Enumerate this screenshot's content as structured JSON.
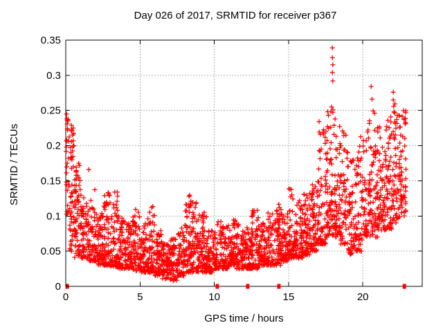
{
  "chart_data": {
    "type": "scatter",
    "title": "Day 026 of 2017, SRMTID for receiver p367",
    "xlabel": "GPS time / hours",
    "ylabel": "SRMTID / TECUs",
    "xlim": [
      0,
      24
    ],
    "ylim": [
      0,
      0.35
    ],
    "xticks": [
      {
        "v": 0,
        "label": "0"
      },
      {
        "v": 5,
        "label": "5"
      },
      {
        "v": 10,
        "label": "10"
      },
      {
        "v": 15,
        "label": "15"
      },
      {
        "v": 20,
        "label": "20"
      }
    ],
    "yticks": [
      {
        "v": 0,
        "label": "0"
      },
      {
        "v": 0.05,
        "label": "0.05"
      },
      {
        "v": 0.1,
        "label": "0.1"
      },
      {
        "v": 0.15,
        "label": "0.15"
      },
      {
        "v": 0.2,
        "label": "0.2"
      },
      {
        "v": 0.25,
        "label": "0.25"
      },
      {
        "v": 0.3,
        "label": "0.3"
      },
      {
        "v": 0.35,
        "label": "0.35"
      }
    ],
    "grid": true,
    "legend": "none",
    "colors": {
      "marker": "#ff0000",
      "grid": "#b0b0b0",
      "axis": "#000000",
      "text": "#000000",
      "background": "#ffffff"
    },
    "marker": {
      "shape": "plus",
      "size": 7,
      "stroke_width": 1.3
    },
    "seed": 20170126,
    "zero_value_markers_x": [
      0.1,
      10.2,
      12.25,
      14.35,
      22.8
    ],
    "outlier_points": [
      [
        0.05,
        0.245
      ],
      [
        0.07,
        0.238
      ],
      [
        0.1,
        0.231
      ],
      [
        0.12,
        0.224
      ],
      [
        0.38,
        0.229
      ],
      [
        0.42,
        0.222
      ],
      [
        0.45,
        0.215
      ],
      [
        0.5,
        0.207
      ],
      [
        0.55,
        0.2
      ],
      [
        0.35,
        0.19
      ],
      [
        0.32,
        0.182
      ],
      [
        1.55,
        0.166
      ],
      [
        2.85,
        0.133
      ],
      [
        3.3,
        0.134
      ],
      [
        5.78,
        0.112
      ],
      [
        8.3,
        0.128
      ],
      [
        8.42,
        0.121
      ],
      [
        9.32,
        0.105
      ],
      [
        12.9,
        0.108
      ],
      [
        15.1,
        0.138
      ],
      [
        15.22,
        0.13
      ],
      [
        17.95,
        0.339
      ],
      [
        17.95,
        0.325
      ],
      [
        17.98,
        0.315
      ],
      [
        17.95,
        0.304
      ],
      [
        17.98,
        0.292
      ],
      [
        17.9,
        0.255
      ],
      [
        20.56,
        0.284
      ],
      [
        20.62,
        0.266
      ],
      [
        22.05,
        0.276
      ],
      [
        22.05,
        0.265
      ],
      [
        22.08,
        0.256
      ],
      [
        22.1,
        0.248
      ]
    ],
    "band_profile_bins": [
      [
        0.02,
        0.25,
        0.1,
        0.246,
        0.17,
        26
      ],
      [
        0.25,
        0.55,
        0.05,
        0.23,
        0.115,
        40
      ],
      [
        0.55,
        1.0,
        0.04,
        0.175,
        0.09,
        65
      ],
      [
        1.0,
        1.5,
        0.04,
        0.13,
        0.07,
        62
      ],
      [
        1.5,
        2.0,
        0.035,
        0.14,
        0.065,
        62
      ],
      [
        2.0,
        2.5,
        0.03,
        0.105,
        0.055,
        60
      ],
      [
        2.5,
        3.0,
        0.03,
        0.135,
        0.055,
        64
      ],
      [
        3.0,
        3.5,
        0.028,
        0.135,
        0.052,
        64
      ],
      [
        3.5,
        4.0,
        0.025,
        0.1,
        0.05,
        60
      ],
      [
        4.0,
        4.5,
        0.025,
        0.09,
        0.046,
        60
      ],
      [
        4.5,
        5.0,
        0.022,
        0.11,
        0.045,
        60
      ],
      [
        5.0,
        5.5,
        0.02,
        0.1,
        0.042,
        60
      ],
      [
        5.5,
        6.0,
        0.02,
        0.115,
        0.045,
        62
      ],
      [
        6.0,
        6.5,
        0.015,
        0.08,
        0.038,
        60
      ],
      [
        6.5,
        7.0,
        0.01,
        0.062,
        0.034,
        58
      ],
      [
        7.0,
        7.5,
        0.008,
        0.068,
        0.03,
        58
      ],
      [
        7.5,
        8.0,
        0.015,
        0.085,
        0.04,
        60
      ],
      [
        8.0,
        8.5,
        0.02,
        0.13,
        0.05,
        64
      ],
      [
        8.5,
        9.0,
        0.02,
        0.12,
        0.05,
        62
      ],
      [
        9.0,
        9.5,
        0.02,
        0.107,
        0.045,
        60
      ],
      [
        9.5,
        10.0,
        0.02,
        0.08,
        0.04,
        56
      ],
      [
        10.0,
        10.5,
        0.025,
        0.097,
        0.045,
        58
      ],
      [
        10.5,
        11.0,
        0.025,
        0.09,
        0.045,
        58
      ],
      [
        11.0,
        11.5,
        0.03,
        0.097,
        0.05,
        58
      ],
      [
        11.5,
        12.0,
        0.025,
        0.09,
        0.046,
        58
      ],
      [
        12.0,
        12.5,
        0.025,
        0.085,
        0.045,
        58
      ],
      [
        12.5,
        13.0,
        0.025,
        0.11,
        0.05,
        58
      ],
      [
        13.0,
        13.5,
        0.03,
        0.09,
        0.05,
        58
      ],
      [
        13.5,
        14.0,
        0.03,
        0.107,
        0.05,
        58
      ],
      [
        14.0,
        14.5,
        0.03,
        0.12,
        0.055,
        60
      ],
      [
        14.5,
        15.0,
        0.035,
        0.105,
        0.055,
        60
      ],
      [
        15.0,
        15.5,
        0.04,
        0.14,
        0.062,
        62
      ],
      [
        15.5,
        16.0,
        0.04,
        0.128,
        0.065,
        62
      ],
      [
        16.0,
        16.5,
        0.045,
        0.132,
        0.07,
        62
      ],
      [
        16.5,
        17.0,
        0.05,
        0.158,
        0.08,
        62
      ],
      [
        17.0,
        17.5,
        0.06,
        0.238,
        0.1,
        66
      ],
      [
        17.5,
        18.0,
        0.07,
        0.26,
        0.13,
        68
      ],
      [
        18.0,
        18.5,
        0.07,
        0.252,
        0.128,
        64
      ],
      [
        18.5,
        19.0,
        0.06,
        0.224,
        0.11,
        56
      ],
      [
        19.0,
        19.5,
        0.045,
        0.2,
        0.09,
        54
      ],
      [
        19.5,
        20.0,
        0.05,
        0.22,
        0.1,
        56
      ],
      [
        20.0,
        20.5,
        0.07,
        0.238,
        0.12,
        60
      ],
      [
        20.5,
        21.0,
        0.07,
        0.25,
        0.128,
        60
      ],
      [
        21.0,
        21.5,
        0.08,
        0.232,
        0.12,
        60
      ],
      [
        21.5,
        22.0,
        0.08,
        0.242,
        0.13,
        60
      ],
      [
        22.0,
        22.5,
        0.09,
        0.262,
        0.145,
        60
      ],
      [
        22.5,
        22.92,
        0.1,
        0.252,
        0.15,
        52
      ]
    ]
  }
}
